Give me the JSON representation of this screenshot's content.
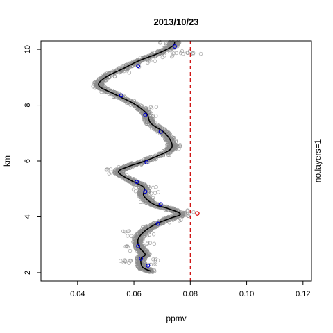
{
  "chart_data": {
    "type": "scatter",
    "title": "2013/10/23",
    "xlabel": "ppmv",
    "ylabel": "km",
    "side_label": "no.layers=1",
    "xlim": [
      0.027,
      0.123
    ],
    "ylim": [
      1.7,
      10.3
    ],
    "xticks": [
      0.04,
      0.06,
      0.08,
      0.1,
      0.12
    ],
    "xtick_labels": [
      "0.04",
      "0.06",
      "0.08",
      "0.10",
      "0.12"
    ],
    "yticks": [
      2,
      4,
      6,
      8,
      10
    ],
    "ytick_labels": [
      "2",
      "4",
      "6",
      "8",
      "10"
    ],
    "grid": false,
    "colors": {
      "raw": "#8c8c8c",
      "fit": "#000000",
      "knot": "#0000cc",
      "outlier": "#dd0000",
      "threshold": "#cc0000"
    },
    "threshold_x": 0.08,
    "fit_curve": {
      "name": "",
      "points": [
        [
          0.066,
          2.05
        ],
        [
          0.063,
          2.2
        ],
        [
          0.0625,
          2.5
        ],
        [
          0.064,
          2.65
        ],
        [
          0.062,
          2.9
        ],
        [
          0.0615,
          3.2
        ],
        [
          0.064,
          3.5
        ],
        [
          0.068,
          3.75
        ],
        [
          0.073,
          3.95
        ],
        [
          0.0765,
          4.1
        ],
        [
          0.072,
          4.3
        ],
        [
          0.067,
          4.45
        ],
        [
          0.0635,
          4.75
        ],
        [
          0.0635,
          5.05
        ],
        [
          0.059,
          5.3
        ],
        [
          0.0545,
          5.6
        ],
        [
          0.058,
          5.8
        ],
        [
          0.064,
          6.0
        ],
        [
          0.072,
          6.35
        ],
        [
          0.0735,
          6.6
        ],
        [
          0.071,
          7.0
        ],
        [
          0.066,
          7.35
        ],
        [
          0.0645,
          7.7
        ],
        [
          0.06,
          8.05
        ],
        [
          0.053,
          8.4
        ],
        [
          0.0475,
          8.7
        ],
        [
          0.05,
          9.0
        ],
        [
          0.056,
          9.3
        ],
        [
          0.062,
          9.6
        ],
        [
          0.0685,
          9.85
        ],
        [
          0.0735,
          10.1
        ],
        [
          0.0745,
          10.25
        ]
      ]
    },
    "knots": [
      {
        "x": 0.065,
        "y": 2.25
      },
      {
        "x": 0.0625,
        "y": 2.5
      },
      {
        "x": 0.0615,
        "y": 2.95
      },
      {
        "x": 0.0685,
        "y": 3.75
      },
      {
        "x": 0.0695,
        "y": 4.45
      },
      {
        "x": 0.064,
        "y": 4.9
      },
      {
        "x": 0.061,
        "y": 5.25
      },
      {
        "x": 0.0645,
        "y": 5.95
      },
      {
        "x": 0.0695,
        "y": 7.05
      },
      {
        "x": 0.064,
        "y": 7.65
      },
      {
        "x": 0.0555,
        "y": 8.35
      },
      {
        "x": 0.0615,
        "y": 9.4
      },
      {
        "x": 0.0745,
        "y": 10.1
      }
    ],
    "outlier": {
      "x": 0.0825,
      "y": 4.12
    },
    "raw_samples": [
      [
        0.067,
        2.05
      ],
      [
        0.064,
        2.15
      ],
      [
        0.06,
        2.35
      ],
      [
        0.058,
        2.4
      ],
      [
        0.066,
        2.3
      ],
      [
        0.057,
        2.45
      ],
      [
        0.067,
        2.45
      ],
      [
        0.06,
        2.75
      ],
      [
        0.063,
        2.85
      ],
      [
        0.058,
        2.95
      ],
      [
        0.066,
        3.05
      ],
      [
        0.059,
        3.3
      ],
      [
        0.066,
        3.35
      ],
      [
        0.057,
        3.45
      ],
      [
        0.065,
        3.6
      ],
      [
        0.071,
        3.8
      ],
      [
        0.075,
        3.9
      ],
      [
        0.078,
        4.05
      ],
      [
        0.08,
        4.2
      ],
      [
        0.074,
        4.25
      ],
      [
        0.069,
        4.4
      ],
      [
        0.064,
        4.55
      ],
      [
        0.065,
        4.7
      ],
      [
        0.067,
        4.85
      ],
      [
        0.061,
        4.95
      ],
      [
        0.066,
        5.05
      ],
      [
        0.062,
        5.15
      ],
      [
        0.058,
        5.35
      ],
      [
        0.053,
        5.55
      ],
      [
        0.05,
        5.7
      ],
      [
        0.056,
        5.75
      ],
      [
        0.061,
        5.9
      ],
      [
        0.067,
        6.05
      ],
      [
        0.071,
        6.2
      ],
      [
        0.075,
        6.45
      ],
      [
        0.076,
        6.55
      ],
      [
        0.073,
        6.8
      ],
      [
        0.07,
        7.05
      ],
      [
        0.068,
        7.2
      ],
      [
        0.064,
        7.5
      ],
      [
        0.066,
        7.6
      ],
      [
        0.063,
        7.8
      ],
      [
        0.066,
        7.9
      ],
      [
        0.058,
        8.15
      ],
      [
        0.055,
        8.3
      ],
      [
        0.05,
        8.5
      ],
      [
        0.047,
        8.65
      ],
      [
        0.048,
        8.8
      ],
      [
        0.052,
        9.05
      ],
      [
        0.057,
        9.2
      ],
      [
        0.06,
        9.4
      ],
      [
        0.066,
        9.55
      ],
      [
        0.072,
        9.75
      ],
      [
        0.076,
        9.85
      ],
      [
        0.079,
        9.9
      ],
      [
        0.082,
        9.85
      ],
      [
        0.073,
        10.15
      ],
      [
        0.071,
        10.25
      ]
    ]
  }
}
